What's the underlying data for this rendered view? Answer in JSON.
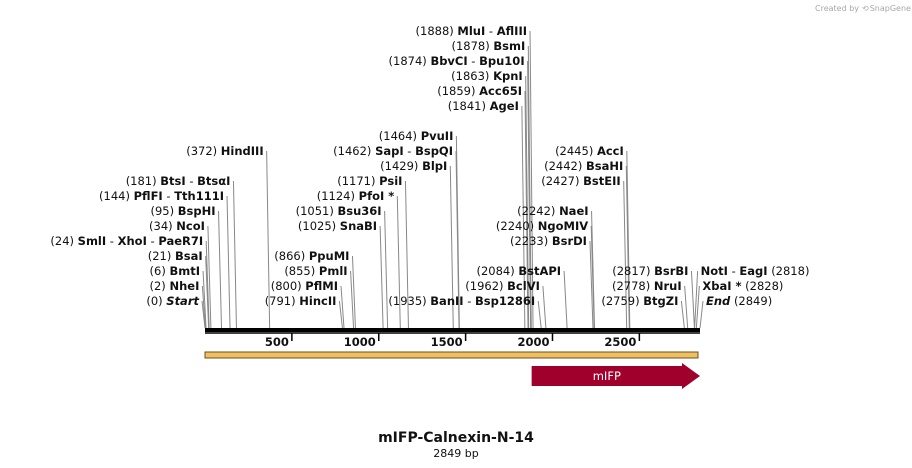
{
  "credit": {
    "prefix": "Created by",
    "brand": "SnapGene"
  },
  "title": "mIFP-Calnexin-N-14",
  "length_label": "2849 bp",
  "total_bp": 2849,
  "axis_ticks": [
    {
      "bp": 500,
      "label": "500"
    },
    {
      "bp": 1000,
      "label": "1000"
    },
    {
      "bp": 1500,
      "label": "1500"
    },
    {
      "bp": 2000,
      "label": "2000"
    },
    {
      "bp": 2500,
      "label": "2500"
    }
  ],
  "feature": {
    "name": "mIFP",
    "start_bp": 1880,
    "end_bp": 2849,
    "color": "#a0002c"
  },
  "orf_bar_color": "#f0c060",
  "sites": [
    {
      "side": "left",
      "level": 0,
      "pos": "(0)",
      "names": [
        {
          "t": "Start",
          "s": "it"
        }
      ]
    },
    {
      "side": "left",
      "level": 1,
      "pos": "(2)",
      "names": [
        {
          "t": "NheI",
          "s": "b"
        }
      ]
    },
    {
      "side": "left",
      "level": 2,
      "pos": "(6)",
      "names": [
        {
          "t": "BmtI",
          "s": "b"
        }
      ]
    },
    {
      "side": "left",
      "level": 3,
      "pos": "(21)",
      "names": [
        {
          "t": "BsaI",
          "s": "b"
        }
      ]
    },
    {
      "side": "left",
      "level": 4,
      "pos": "(24)",
      "names": [
        {
          "t": "SmlI",
          "s": "b"
        },
        {
          "t": "XhoI",
          "s": "b"
        },
        {
          "t": "PaeR7I",
          "s": "b"
        }
      ]
    },
    {
      "side": "left",
      "level": 5,
      "pos": "(34)",
      "names": [
        {
          "t": "NcoI",
          "s": "b"
        }
      ]
    },
    {
      "side": "left",
      "level": 6,
      "pos": "(95)",
      "names": [
        {
          "t": "BspHI",
          "s": "b"
        }
      ]
    },
    {
      "side": "left",
      "level": 7,
      "pos": "(144)",
      "names": [
        {
          "t": "PflFI",
          "s": "b"
        },
        {
          "t": "Tth111I",
          "s": "b"
        }
      ]
    },
    {
      "side": "left",
      "level": 8,
      "pos": "(181)",
      "names": [
        {
          "t": "BtsI",
          "s": "b"
        },
        {
          "t": "BtsαI",
          "s": "b"
        }
      ]
    },
    {
      "side": "left",
      "level": 10,
      "pos": "(372)",
      "names": [
        {
          "t": "HindIII",
          "s": "b"
        }
      ]
    },
    {
      "side": "left",
      "level": 0,
      "pos": "(791)",
      "names": [
        {
          "t": "HincII",
          "s": "b"
        }
      ]
    },
    {
      "side": "left",
      "level": 1,
      "pos": "(800)",
      "names": [
        {
          "t": "PflMI",
          "s": "b"
        }
      ]
    },
    {
      "side": "left",
      "level": 2,
      "pos": "(855)",
      "names": [
        {
          "t": "PmlI",
          "s": "b"
        }
      ]
    },
    {
      "side": "left",
      "level": 3,
      "pos": "(866)",
      "names": [
        {
          "t": "PpuMI",
          "s": "b"
        }
      ]
    },
    {
      "side": "left",
      "level": 5,
      "pos": "(1025)",
      "names": [
        {
          "t": "SnaBI",
          "s": "b"
        }
      ]
    },
    {
      "side": "left",
      "level": 6,
      "pos": "(1051)",
      "names": [
        {
          "t": "Bsu36I",
          "s": "b"
        }
      ]
    },
    {
      "side": "left",
      "level": 7,
      "pos": "(1124)",
      "names": [
        {
          "t": "PfoI *",
          "s": "b"
        }
      ]
    },
    {
      "side": "left",
      "level": 8,
      "pos": "(1171)",
      "names": [
        {
          "t": "PsiI",
          "s": "b"
        }
      ]
    },
    {
      "side": "left",
      "level": 0,
      "pos": "(1935)",
      "names": [
        {
          "t": "BanII",
          "s": "b"
        },
        {
          "t": "Bsp1286I",
          "s": "b"
        }
      ]
    },
    {
      "side": "left",
      "level": 9,
      "pos": "(1429)",
      "names": [
        {
          "t": "BlpI",
          "s": "b"
        }
      ]
    },
    {
      "side": "left",
      "level": 10,
      "pos": "(1462)",
      "names": [
        {
          "t": "SapI",
          "s": "b"
        },
        {
          "t": "BspQI",
          "s": "b"
        }
      ]
    },
    {
      "side": "left",
      "level": 11,
      "pos": "(1464)",
      "names": [
        {
          "t": "PvuII",
          "s": "b"
        }
      ]
    },
    {
      "side": "left",
      "level": 1,
      "pos": "(1962)",
      "names": [
        {
          "t": "BclVI",
          "s": "b"
        }
      ]
    },
    {
      "side": "left",
      "level": 2,
      "pos": "(2084)",
      "names": [
        {
          "t": "BstAPI",
          "s": "b"
        }
      ]
    },
    {
      "side": "left",
      "level": 4,
      "pos": "(2233)",
      "names": [
        {
          "t": "BsrDI",
          "s": "b"
        }
      ]
    },
    {
      "side": "left",
      "level": 5,
      "pos": "(2240)",
      "names": [
        {
          "t": "NgoMIV",
          "s": "b"
        }
      ]
    },
    {
      "side": "left",
      "level": 6,
      "pos": "(2242)",
      "names": [
        {
          "t": "NaeI",
          "s": "b"
        }
      ]
    },
    {
      "side": "left",
      "level": 8,
      "pos": "(2427)",
      "names": [
        {
          "t": "BstEII",
          "s": "b"
        }
      ]
    },
    {
      "side": "left",
      "level": 9,
      "pos": "(2442)",
      "names": [
        {
          "t": "BsaHI",
          "s": "b"
        }
      ]
    },
    {
      "side": "left",
      "level": 10,
      "pos": "(2445)",
      "names": [
        {
          "t": "AccI",
          "s": "b"
        }
      ]
    },
    {
      "side": "left",
      "level": 13,
      "pos": "(1841)",
      "names": [
        {
          "t": "AgeI",
          "s": "b"
        }
      ]
    },
    {
      "side": "left",
      "level": 14,
      "pos": "(1859)",
      "names": [
        {
          "t": "Acc65I",
          "s": "b"
        }
      ]
    },
    {
      "side": "left",
      "level": 15,
      "pos": "(1863)",
      "names": [
        {
          "t": "KpnI",
          "s": "b"
        }
      ]
    },
    {
      "side": "left",
      "level": 16,
      "pos": "(1874)",
      "names": [
        {
          "t": "BbvCI",
          "s": "b"
        },
        {
          "t": "Bpu10I",
          "s": "b"
        }
      ]
    },
    {
      "side": "left",
      "level": 17,
      "pos": "(1878)",
      "names": [
        {
          "t": "BsmI",
          "s": "b"
        }
      ]
    },
    {
      "side": "left",
      "level": 18,
      "pos": "(1888)",
      "names": [
        {
          "t": "MluI",
          "s": "b"
        },
        {
          "t": "AflIII",
          "s": "b"
        }
      ]
    },
    {
      "side": "left",
      "level": 0,
      "pos": "(2759)",
      "names": [
        {
          "t": "BtgZI",
          "s": "b"
        }
      ]
    },
    {
      "side": "left",
      "level": 1,
      "pos": "(2778)",
      "names": [
        {
          "t": "NruI",
          "s": "b"
        }
      ]
    },
    {
      "side": "left",
      "level": 2,
      "pos": "(2817)",
      "names": [
        {
          "t": "BsrBI",
          "s": "b"
        }
      ]
    },
    {
      "side": "right",
      "level": 0,
      "pos": "(2849)",
      "names": [
        {
          "t": "End",
          "s": "it"
        }
      ]
    },
    {
      "side": "right",
      "level": 1,
      "pos": "(2828)",
      "names": [
        {
          "t": "XbaI *",
          "s": "b"
        }
      ]
    },
    {
      "side": "right",
      "level": 2,
      "pos": "(2818)",
      "names": [
        {
          "t": "NotI",
          "s": "b"
        },
        {
          "t": "EagI",
          "s": "b"
        }
      ]
    }
  ]
}
